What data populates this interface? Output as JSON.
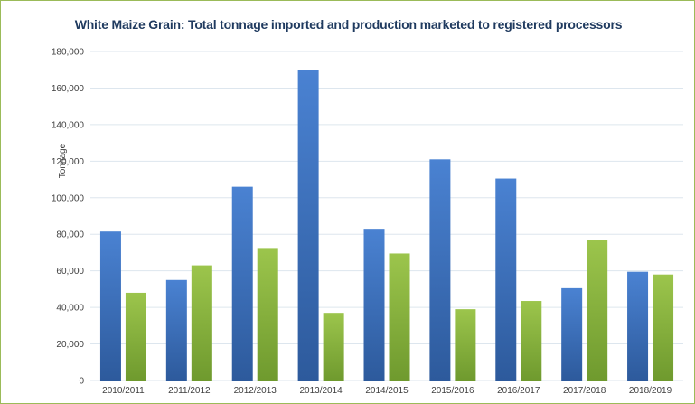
{
  "chart_data": {
    "type": "bar",
    "title": "White Maize Grain: Total tonnage imported and production marketed to registered processors",
    "ylabel": "Tonnage",
    "xlabel": "",
    "categories": [
      "2010/2011",
      "2011/2012",
      "2012/2013",
      "2013/2014",
      "2014/2015",
      "2015/2016",
      "2016/2017",
      "2017/2018",
      "2018/2019"
    ],
    "series": [
      {
        "color": "#3d72c4",
        "values": [
          81500,
          55000,
          106000,
          170000,
          83000,
          121000,
          110500,
          50500,
          59500
        ]
      },
      {
        "color": "#8db640",
        "values": [
          48000,
          63000,
          72500,
          37000,
          69500,
          39000,
          43500,
          77000,
          58000
        ]
      }
    ],
    "ylim": [
      0,
      180000
    ],
    "yticks": [
      0,
      20000,
      40000,
      60000,
      80000,
      100000,
      120000,
      140000,
      160000,
      180000
    ],
    "ytick_labels": [
      "0",
      "20,000",
      "40,000",
      "60,000",
      "80,000",
      "100,000",
      "120,000",
      "140,000",
      "160,000",
      "180,000"
    ],
    "grid": true,
    "legend": "none"
  }
}
